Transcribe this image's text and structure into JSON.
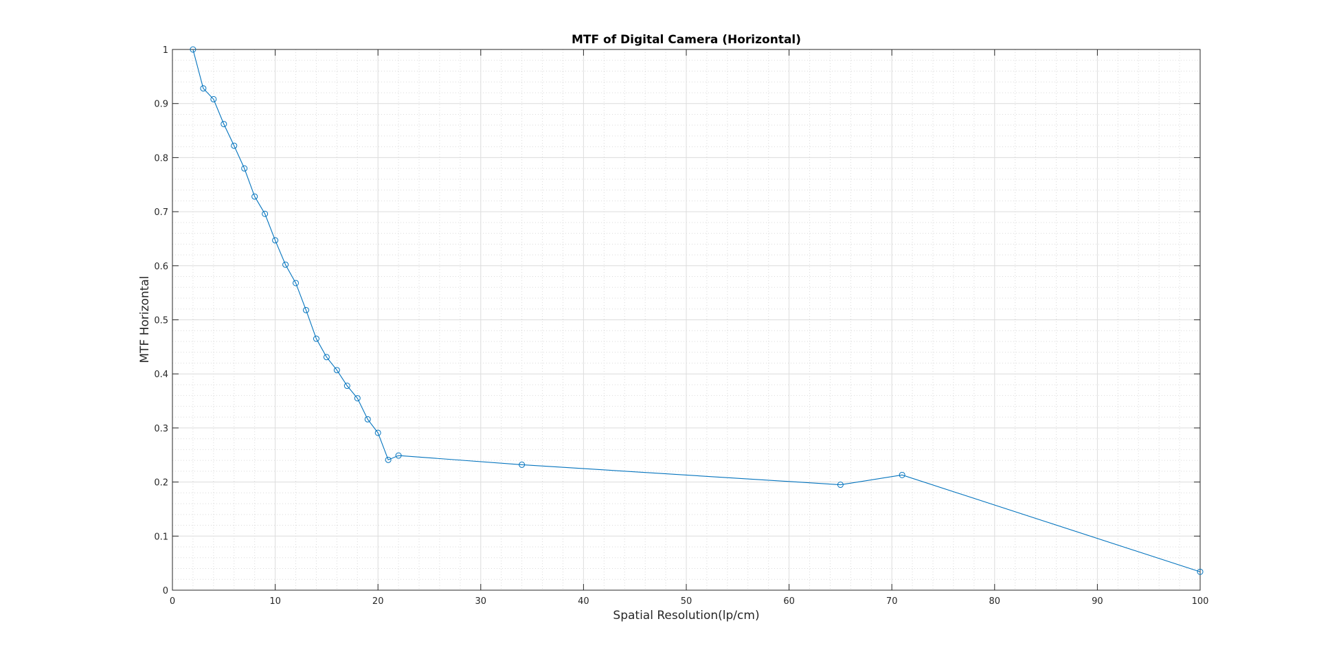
{
  "chart_data": {
    "type": "line",
    "title": "MTF of Digital Camera (Horizontal)",
    "xlabel": "Spatial Resolution(lp/cm)",
    "ylabel": "MTF Horizontal",
    "xlim": [
      0,
      100
    ],
    "ylim": [
      0,
      1
    ],
    "xticks": [
      0,
      10,
      20,
      30,
      40,
      50,
      60,
      70,
      80,
      90,
      100
    ],
    "yticks": [
      0,
      0.1,
      0.2,
      0.3,
      0.4,
      0.5,
      0.6,
      0.7,
      0.8,
      0.9,
      1
    ],
    "grid": true,
    "minor_grid": true,
    "marker": "circle",
    "color": "#0072BD",
    "series": [
      {
        "x": [
          2,
          3,
          4,
          5,
          6,
          7,
          8,
          9,
          10,
          11,
          12,
          13,
          14,
          15,
          16,
          17,
          18,
          19,
          20,
          21,
          22,
          34,
          65,
          71,
          100
        ],
        "y": [
          1.0,
          0.928,
          0.908,
          0.862,
          0.822,
          0.78,
          0.728,
          0.696,
          0.647,
          0.602,
          0.568,
          0.518,
          0.465,
          0.431,
          0.407,
          0.378,
          0.355,
          0.316,
          0.291,
          0.241,
          0.249,
          0.232,
          0.195,
          0.213,
          0.034
        ]
      }
    ]
  }
}
